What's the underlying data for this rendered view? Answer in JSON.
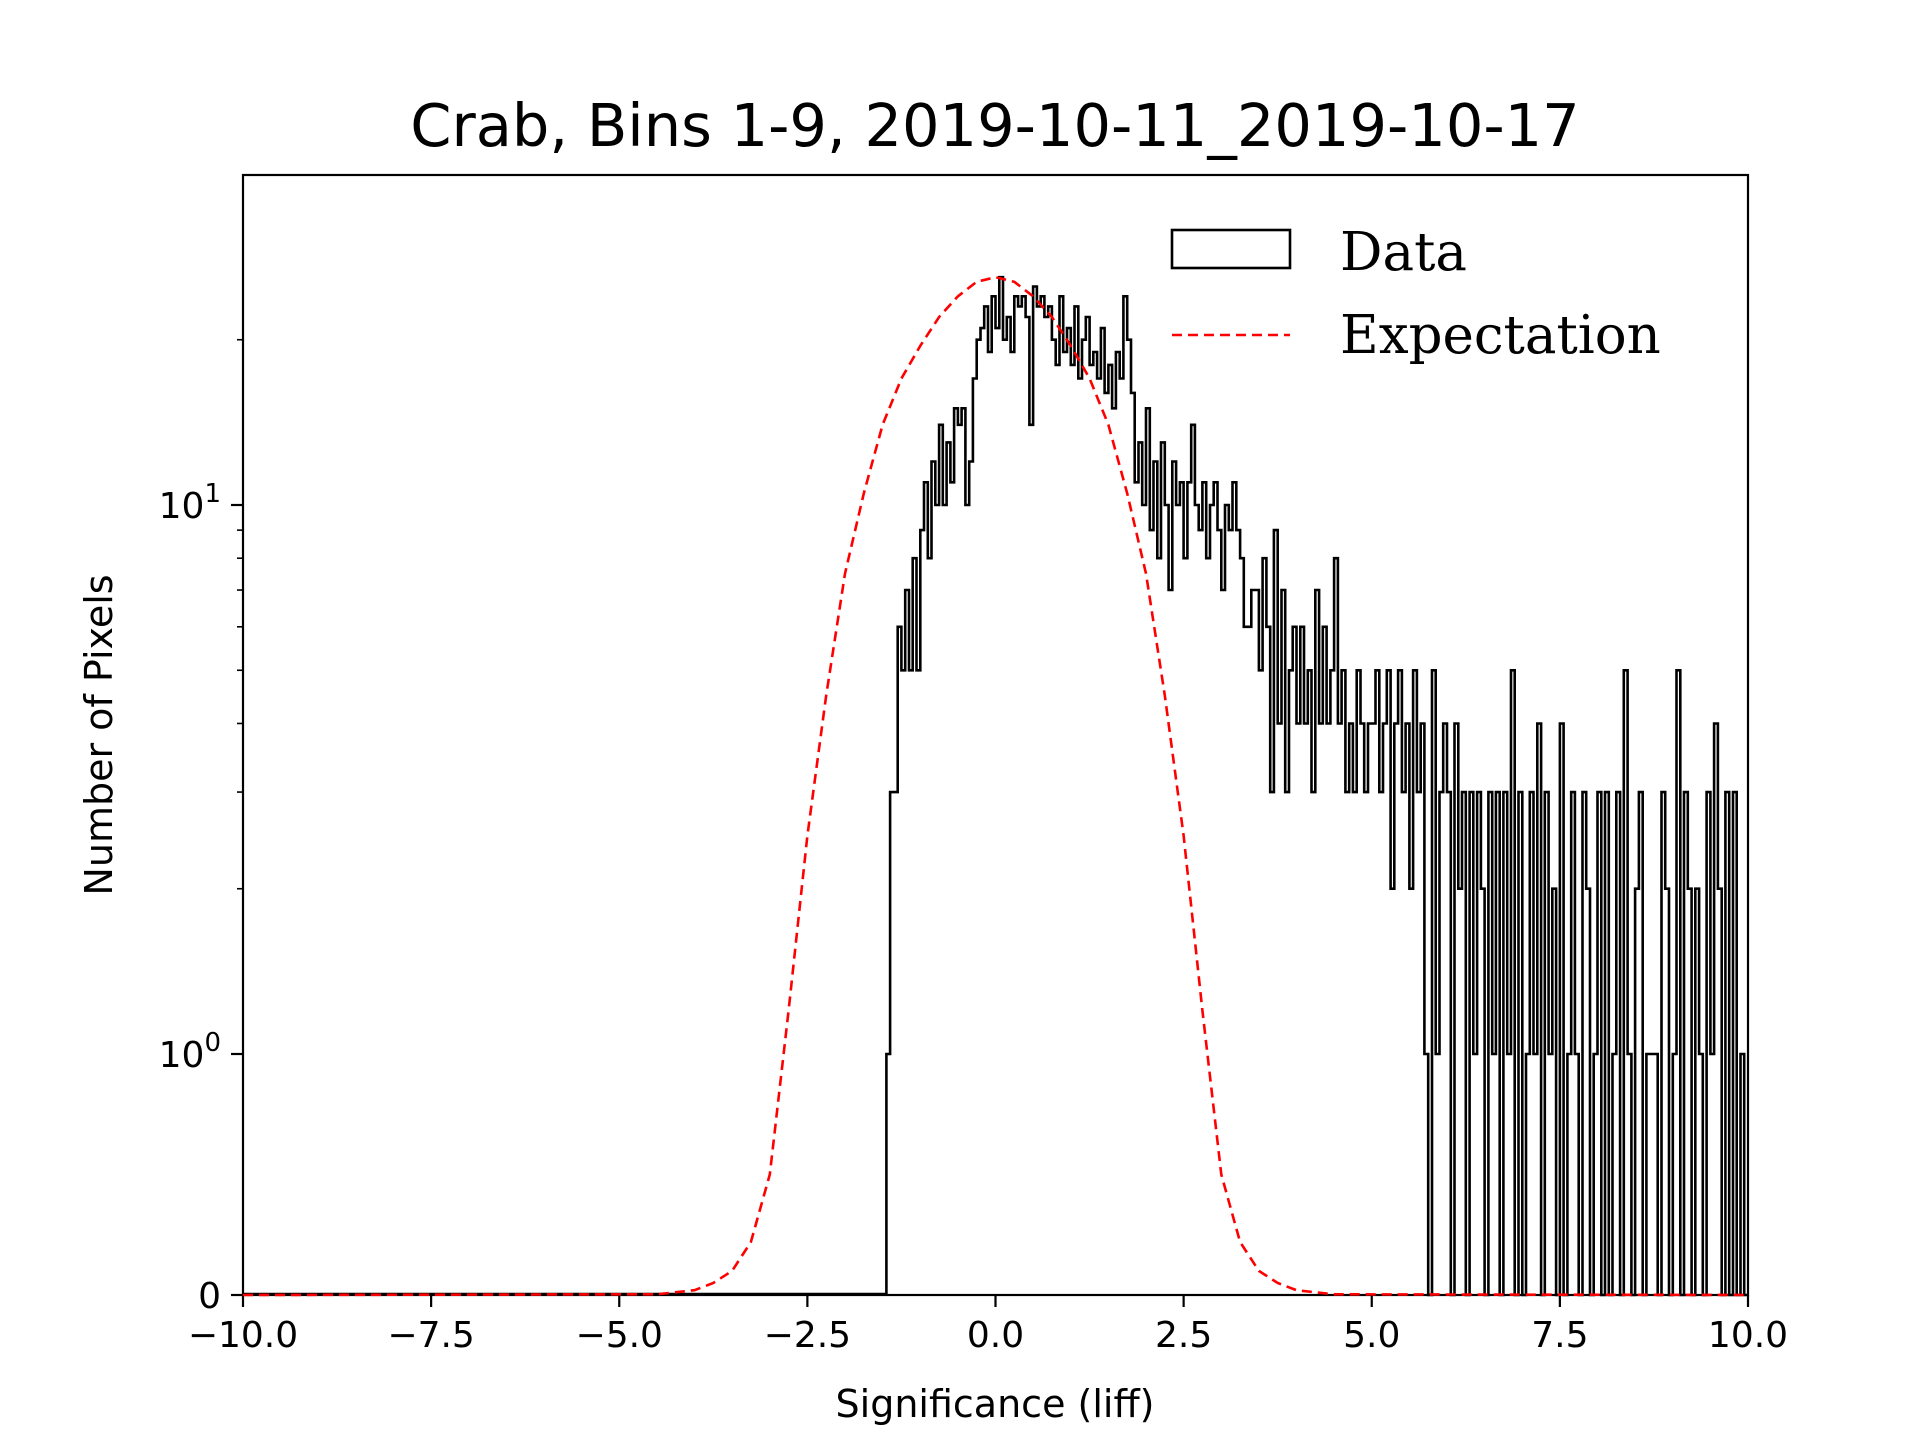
{
  "chart_data": {
    "type": "histogram",
    "title": "Crab, Bins 1-9, 2019-10-11_2019-10-17",
    "xlabel": "Significance (liff)",
    "ylabel": "Number of Pixels",
    "xlim": [
      -10.0,
      10.0
    ],
    "yscale": "symlog",
    "x_ticks": [
      -10.0,
      -7.5,
      -5.0,
      -2.5,
      0.0,
      2.5,
      5.0,
      7.5,
      10.0
    ],
    "x_tick_labels": [
      "−10.0",
      "−7.5",
      "−5.0",
      "−2.5",
      "0.0",
      "2.5",
      "5.0",
      "7.5",
      "10.0"
    ],
    "y_ticks": [
      0,
      1,
      10
    ],
    "y_tick_labels": {
      "zero": "0",
      "one_base": "10",
      "one_exp": "0",
      "ten_base": "10",
      "ten_exp": "1"
    },
    "legend": {
      "position": "top-right",
      "data_label": "Data",
      "expectation_label": "Expectation"
    },
    "colors": {
      "data": "#000000",
      "expectation": "#ff0000"
    },
    "series": [
      {
        "name": "Data",
        "style": "step",
        "points": [
          [
            -1.45,
            1
          ],
          [
            -1.4,
            3
          ],
          [
            -1.3,
            6
          ],
          [
            -1.25,
            5
          ],
          [
            -1.2,
            7
          ],
          [
            -1.15,
            5
          ],
          [
            -1.1,
            8
          ],
          [
            -1.05,
            5
          ],
          [
            -1.0,
            9
          ],
          [
            -0.95,
            11
          ],
          [
            -0.9,
            8
          ],
          [
            -0.85,
            12
          ],
          [
            -0.8,
            10
          ],
          [
            -0.75,
            14
          ],
          [
            -0.7,
            10
          ],
          [
            -0.65,
            13
          ],
          [
            -0.6,
            11
          ],
          [
            -0.55,
            15
          ],
          [
            -0.5,
            14
          ],
          [
            -0.45,
            15
          ],
          [
            -0.4,
            10
          ],
          [
            -0.35,
            12
          ],
          [
            -0.3,
            17
          ],
          [
            -0.25,
            20
          ],
          [
            -0.2,
            21
          ],
          [
            -0.15,
            23
          ],
          [
            -0.1,
            19
          ],
          [
            -0.05,
            24
          ],
          [
            0.0,
            21
          ],
          [
            0.05,
            26
          ],
          [
            0.1,
            20
          ],
          [
            0.15,
            22
          ],
          [
            0.2,
            19
          ],
          [
            0.25,
            24
          ],
          [
            0.3,
            23
          ],
          [
            0.35,
            24
          ],
          [
            0.4,
            22
          ],
          [
            0.45,
            14
          ],
          [
            0.5,
            25
          ],
          [
            0.55,
            23
          ],
          [
            0.6,
            24
          ],
          [
            0.65,
            22
          ],
          [
            0.7,
            23
          ],
          [
            0.75,
            20
          ],
          [
            0.8,
            18
          ],
          [
            0.85,
            24
          ],
          [
            0.9,
            19
          ],
          [
            0.95,
            21
          ],
          [
            1.0,
            18
          ],
          [
            1.05,
            23
          ],
          [
            1.1,
            17
          ],
          [
            1.15,
            20
          ],
          [
            1.2,
            22
          ],
          [
            1.25,
            18
          ],
          [
            1.3,
            19
          ],
          [
            1.35,
            17
          ],
          [
            1.4,
            21
          ],
          [
            1.45,
            16
          ],
          [
            1.5,
            18
          ],
          [
            1.55,
            15
          ],
          [
            1.6,
            19
          ],
          [
            1.65,
            17
          ],
          [
            1.7,
            24
          ],
          [
            1.75,
            20
          ],
          [
            1.8,
            16
          ],
          [
            1.85,
            11
          ],
          [
            1.9,
            13
          ],
          [
            1.95,
            10
          ],
          [
            2.0,
            15
          ],
          [
            2.05,
            9
          ],
          [
            2.1,
            12
          ],
          [
            2.15,
            8
          ],
          [
            2.2,
            13
          ],
          [
            2.25,
            10
          ],
          [
            2.3,
            7
          ],
          [
            2.35,
            12
          ],
          [
            2.4,
            10
          ],
          [
            2.45,
            11
          ],
          [
            2.5,
            8
          ],
          [
            2.55,
            11
          ],
          [
            2.6,
            14
          ],
          [
            2.65,
            10
          ],
          [
            2.7,
            9
          ],
          [
            2.75,
            11
          ],
          [
            2.8,
            8
          ],
          [
            2.85,
            10
          ],
          [
            2.9,
            11
          ],
          [
            2.95,
            9
          ],
          [
            3.0,
            7
          ],
          [
            3.05,
            10
          ],
          [
            3.1,
            9
          ],
          [
            3.15,
            11
          ],
          [
            3.2,
            9
          ],
          [
            3.25,
            8
          ],
          [
            3.3,
            6
          ],
          [
            3.4,
            7
          ],
          [
            3.5,
            5
          ],
          [
            3.55,
            8
          ],
          [
            3.6,
            6
          ],
          [
            3.65,
            3
          ],
          [
            3.7,
            9
          ],
          [
            3.75,
            4
          ],
          [
            3.8,
            7
          ],
          [
            3.85,
            3
          ],
          [
            3.9,
            5
          ],
          [
            3.95,
            6
          ],
          [
            4.0,
            4
          ],
          [
            4.05,
            6
          ],
          [
            4.1,
            4
          ],
          [
            4.15,
            5
          ],
          [
            4.2,
            3
          ],
          [
            4.25,
            7
          ],
          [
            4.3,
            4
          ],
          [
            4.35,
            6
          ],
          [
            4.4,
            4
          ],
          [
            4.45,
            5
          ],
          [
            4.5,
            8
          ],
          [
            4.55,
            4
          ],
          [
            4.6,
            5
          ],
          [
            4.65,
            3
          ],
          [
            4.7,
            4
          ],
          [
            4.75,
            3
          ],
          [
            4.8,
            5
          ],
          [
            4.85,
            4
          ],
          [
            4.9,
            3
          ],
          [
            4.95,
            4
          ],
          [
            5.05,
            5
          ],
          [
            5.1,
            3
          ],
          [
            5.15,
            4
          ],
          [
            5.2,
            5
          ],
          [
            5.25,
            2
          ],
          [
            5.3,
            4
          ],
          [
            5.35,
            5
          ],
          [
            5.4,
            3
          ],
          [
            5.45,
            4
          ],
          [
            5.5,
            2
          ],
          [
            5.55,
            5
          ],
          [
            5.6,
            3
          ],
          [
            5.65,
            4
          ],
          [
            5.7,
            1
          ],
          [
            5.75,
            0
          ],
          [
            5.8,
            5
          ],
          [
            5.85,
            1
          ],
          [
            5.9,
            3
          ],
          [
            5.95,
            4
          ],
          [
            6.0,
            3
          ],
          [
            6.05,
            0
          ],
          [
            6.1,
            4
          ],
          [
            6.15,
            2
          ],
          [
            6.2,
            3
          ],
          [
            6.25,
            0
          ],
          [
            6.3,
            3
          ],
          [
            6.35,
            1
          ],
          [
            6.4,
            3
          ],
          [
            6.45,
            2
          ],
          [
            6.5,
            0
          ],
          [
            6.55,
            3
          ],
          [
            6.6,
            1
          ],
          [
            6.65,
            3
          ],
          [
            6.7,
            0
          ],
          [
            6.75,
            3
          ],
          [
            6.8,
            1
          ],
          [
            6.85,
            5
          ],
          [
            6.9,
            0
          ],
          [
            6.95,
            3
          ],
          [
            7.0,
            0
          ],
          [
            7.05,
            1
          ],
          [
            7.1,
            3
          ],
          [
            7.15,
            1
          ],
          [
            7.2,
            4
          ],
          [
            7.25,
            0
          ],
          [
            7.3,
            3
          ],
          [
            7.35,
            1
          ],
          [
            7.4,
            2
          ],
          [
            7.45,
            0
          ],
          [
            7.5,
            4
          ],
          [
            7.55,
            0
          ],
          [
            7.6,
            1
          ],
          [
            7.65,
            3
          ],
          [
            7.7,
            1
          ],
          [
            7.75,
            0
          ],
          [
            7.8,
            3
          ],
          [
            7.85,
            2
          ],
          [
            7.9,
            0
          ],
          [
            7.95,
            1
          ],
          [
            8.0,
            3
          ],
          [
            8.05,
            0
          ],
          [
            8.1,
            3
          ],
          [
            8.15,
            0
          ],
          [
            8.2,
            1
          ],
          [
            8.25,
            3
          ],
          [
            8.3,
            0
          ],
          [
            8.35,
            5
          ],
          [
            8.4,
            1
          ],
          [
            8.45,
            0
          ],
          [
            8.5,
            2
          ],
          [
            8.55,
            3
          ],
          [
            8.6,
            0
          ],
          [
            8.65,
            1
          ],
          [
            8.7,
            1
          ],
          [
            8.8,
            0
          ],
          [
            8.85,
            3
          ],
          [
            8.9,
            2
          ],
          [
            8.95,
            0
          ],
          [
            9.0,
            1
          ],
          [
            9.05,
            5
          ],
          [
            9.1,
            0
          ],
          [
            9.15,
            3
          ],
          [
            9.2,
            2
          ],
          [
            9.25,
            0
          ],
          [
            9.3,
            2
          ],
          [
            9.35,
            1
          ],
          [
            9.4,
            0
          ],
          [
            9.45,
            3
          ],
          [
            9.5,
            1
          ],
          [
            9.55,
            4
          ],
          [
            9.6,
            2
          ],
          [
            9.65,
            0
          ],
          [
            9.7,
            3
          ],
          [
            9.75,
            0
          ],
          [
            9.8,
            3
          ],
          [
            9.85,
            0
          ],
          [
            9.9,
            1
          ],
          [
            9.95,
            0
          ]
        ]
      },
      {
        "name": "Expectation",
        "style": "dashed",
        "points": [
          [
            -10.0,
            0
          ],
          [
            -4.5,
            0.003
          ],
          [
            -4.0,
            0.02
          ],
          [
            -3.75,
            0.05
          ],
          [
            -3.5,
            0.1
          ],
          [
            -3.25,
            0.22
          ],
          [
            -3.0,
            0.5
          ],
          [
            -2.75,
            1.2
          ],
          [
            -2.5,
            2.5
          ],
          [
            -2.25,
            4.5
          ],
          [
            -2.0,
            7.5
          ],
          [
            -1.75,
            10.5
          ],
          [
            -1.5,
            14.0
          ],
          [
            -1.25,
            17.0
          ],
          [
            -1.0,
            19.5
          ],
          [
            -0.75,
            22.0
          ],
          [
            -0.5,
            24.0
          ],
          [
            -0.25,
            25.5
          ],
          [
            0.0,
            26.0
          ],
          [
            0.25,
            25.5
          ],
          [
            0.5,
            24.0
          ],
          [
            0.75,
            22.0
          ],
          [
            1.0,
            19.5
          ],
          [
            1.25,
            17.0
          ],
          [
            1.5,
            14.0
          ],
          [
            1.75,
            10.5
          ],
          [
            2.0,
            7.5
          ],
          [
            2.25,
            4.5
          ],
          [
            2.5,
            2.5
          ],
          [
            2.75,
            1.2
          ],
          [
            3.0,
            0.5
          ],
          [
            3.25,
            0.22
          ],
          [
            3.5,
            0.1
          ],
          [
            3.75,
            0.05
          ],
          [
            4.0,
            0.02
          ],
          [
            4.5,
            0.003
          ],
          [
            10.0,
            0
          ]
        ]
      }
    ]
  }
}
